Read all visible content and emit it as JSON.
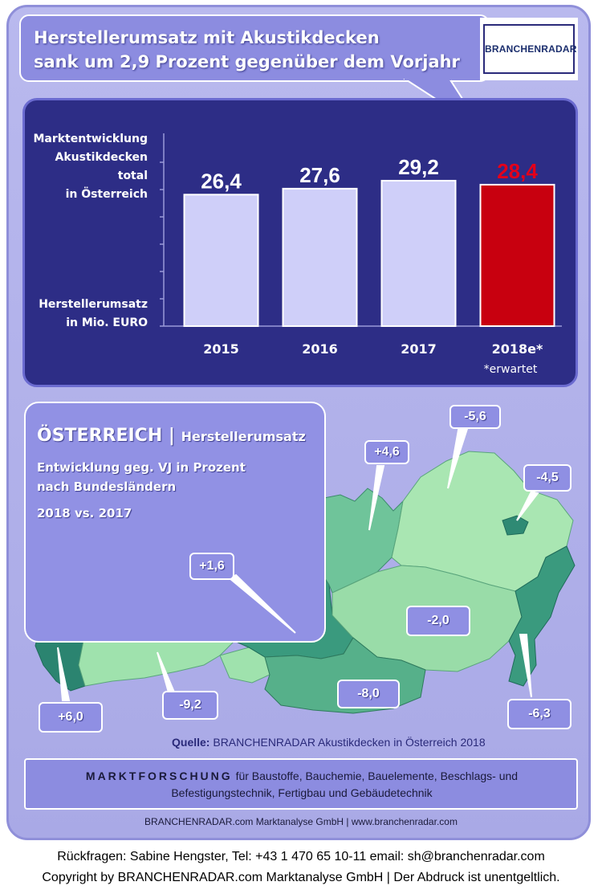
{
  "header": {
    "headline_line1": "Herstellerumsatz mit  Akustikdecken",
    "headline_line2": "sank um 2,9 Prozent gegenüber dem Vorjahr",
    "logo_text": "BRANCHENRADAR"
  },
  "chart_data": {
    "type": "bar",
    "categories": [
      "2015",
      "2016",
      "2017",
      "2018e*"
    ],
    "values": [
      26.4,
      27.6,
      29.2,
      28.4
    ],
    "value_labels": [
      "26,4",
      "27,6",
      "29,2",
      "28,4"
    ],
    "bar_colors": [
      "#cfcff9",
      "#cfcff9",
      "#cfcff9",
      "#c8000f"
    ],
    "value_label_colors": [
      "#ffffff",
      "#ffffff",
      "#ffffff",
      "#e4001a"
    ],
    "ylabel_top": [
      "Marktentwicklung",
      "Akustikdecken",
      "total",
      "in Österreich"
    ],
    "ylabel_bottom": [
      "Herstellerumsatz",
      "in Mio. EURO"
    ],
    "footnote": "*erwartet",
    "grid": false
  },
  "map": {
    "title": "ÖSTERREICH",
    "title_sub": "Herstellerumsatz",
    "subtitle_line1": "Entwicklung  geg. VJ in Prozent",
    "subtitle_line2": "nach Bundesländern",
    "period": "2018 vs. 2017",
    "regions": [
      {
        "label": "+4,6",
        "color": "#6fc49a"
      },
      {
        "label": "-5,6",
        "color": "#a9e6b2"
      },
      {
        "label": "-4,5",
        "color": "#2f8a74"
      },
      {
        "label": "+1,6",
        "color": "#3a9a7e"
      },
      {
        "label": "-2,0",
        "color": "#99dca8"
      },
      {
        "label": "+6,0",
        "color": "#2b8470"
      },
      {
        "label": "-9,2",
        "color": "#9fe2ad"
      },
      {
        "label": "-8,0",
        "color": "#56b08a"
      },
      {
        "label": "-6,3",
        "color": "#3a9a7e"
      }
    ]
  },
  "source": {
    "label": "Quelle:",
    "text": "BRANCHENRADAR Akustikdecken in Österreich 2018"
  },
  "footer_box": {
    "title": "MARKTFORSCHUNG",
    "line1": "für Baustoffe, Bauchemie, Bauelemente, Beschlags- und",
    "line2": "Befestigungstechnik, Fertigbau und Gebäudetechnik"
  },
  "company_line": "BRANCHENRADAR.com Marktanalyse GmbH | www.branchenradar.com",
  "bottom": {
    "contact": "Rückfragen: Sabine Hengster, Tel: +43 1 470 65 10-11 email: sh@branchenradar.com",
    "copyright": "Copyright by BRANCHENRADAR.com  Marktanalyse GmbH | Der Abdruck ist unentgeltlich."
  }
}
